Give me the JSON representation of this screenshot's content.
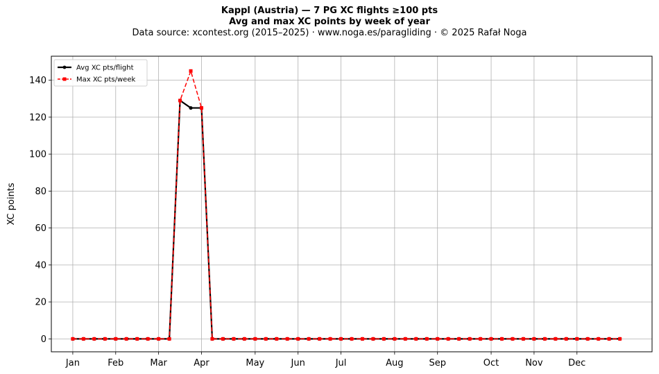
{
  "chart_data": {
    "type": "line",
    "title_lines": [
      "Kappl (Austria)  —  7 PG XC flights ≥100 pts",
      "Avg and max XC points by week of year"
    ],
    "subtitle": "Data source: xcontest.org (2015–2025)  ·  www.noga.es/paragliding  ·  © 2025 Rafał Noga",
    "xlabel": "",
    "ylabel": "XC points",
    "x_tick_labels": [
      {
        "label": "Jan",
        "week": 1
      },
      {
        "label": "Feb",
        "week": 5
      },
      {
        "label": "Mar",
        "week": 9
      },
      {
        "label": "Apr",
        "week": 13
      },
      {
        "label": "May",
        "week": 18
      },
      {
        "label": "Jun",
        "week": 22
      },
      {
        "label": "Jul",
        "week": 26
      },
      {
        "label": "Aug",
        "week": 31
      },
      {
        "label": "Sep",
        "week": 35
      },
      {
        "label": "Oct",
        "week": 40
      },
      {
        "label": "Nov",
        "week": 44
      },
      {
        "label": "Dec",
        "week": 48
      }
    ],
    "xlim": [
      -1,
      55
    ],
    "ylim": [
      -7,
      153
    ],
    "y_ticks": [
      0,
      20,
      40,
      60,
      80,
      100,
      120,
      140
    ],
    "grid": true,
    "legend_position": "top-left",
    "x": [
      1,
      2,
      3,
      4,
      5,
      6,
      7,
      8,
      9,
      10,
      11,
      12,
      13,
      14,
      15,
      16,
      17,
      18,
      19,
      20,
      21,
      22,
      23,
      24,
      25,
      26,
      27,
      28,
      29,
      30,
      31,
      32,
      33,
      34,
      35,
      36,
      37,
      38,
      39,
      40,
      41,
      42,
      43,
      44,
      45,
      46,
      47,
      48,
      49,
      50,
      51,
      52
    ],
    "series": [
      {
        "name": "Avg XC pts/flight",
        "color": "#000000",
        "style": "solid",
        "marker": "circle",
        "values": [
          0,
          0,
          0,
          0,
          0,
          0,
          0,
          0,
          0,
          0,
          129,
          125,
          125,
          0,
          0,
          0,
          0,
          0,
          0,
          0,
          0,
          0,
          0,
          0,
          0,
          0,
          0,
          0,
          0,
          0,
          0,
          0,
          0,
          0,
          0,
          0,
          0,
          0,
          0,
          0,
          0,
          0,
          0,
          0,
          0,
          0,
          0,
          0,
          0,
          0,
          0,
          0
        ]
      },
      {
        "name": "Max XC pts/week",
        "color": "#ff0000",
        "style": "dashed",
        "marker": "square",
        "values": [
          0,
          0,
          0,
          0,
          0,
          0,
          0,
          0,
          0,
          0,
          129,
          145,
          125,
          0,
          0,
          0,
          0,
          0,
          0,
          0,
          0,
          0,
          0,
          0,
          0,
          0,
          0,
          0,
          0,
          0,
          0,
          0,
          0,
          0,
          0,
          0,
          0,
          0,
          0,
          0,
          0,
          0,
          0,
          0,
          0,
          0,
          0,
          0,
          0,
          0,
          0,
          0
        ]
      }
    ]
  }
}
